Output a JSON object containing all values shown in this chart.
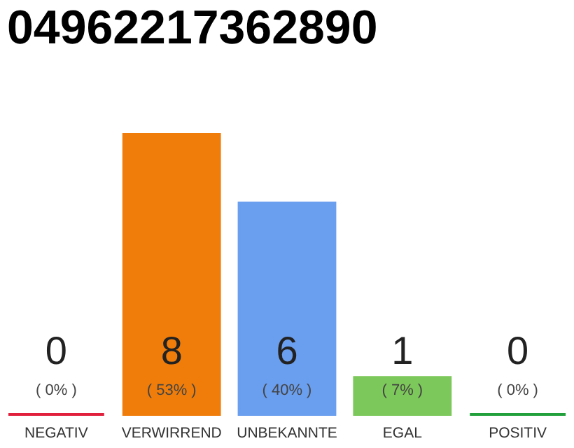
{
  "chart_data": {
    "type": "bar",
    "title": "04962217362890",
    "categories": [
      "NEGATIV",
      "VERWIRREND",
      "UNBEKANNTE",
      "EGAL",
      "POSITIV"
    ],
    "values": [
      0,
      53,
      40,
      7,
      0
    ],
    "colors": [
      "#e0203c",
      "#f07d0a",
      "#6a9eee",
      "#7dc85a",
      "#22a03c"
    ],
    "value_labels": [
      "( 0% )",
      "( 53% )",
      "( 40% )",
      "( 7% )",
      "( 0% )"
    ],
    "annotations": [
      "0",
      "8",
      "6",
      "1",
      "0"
    ]
  }
}
